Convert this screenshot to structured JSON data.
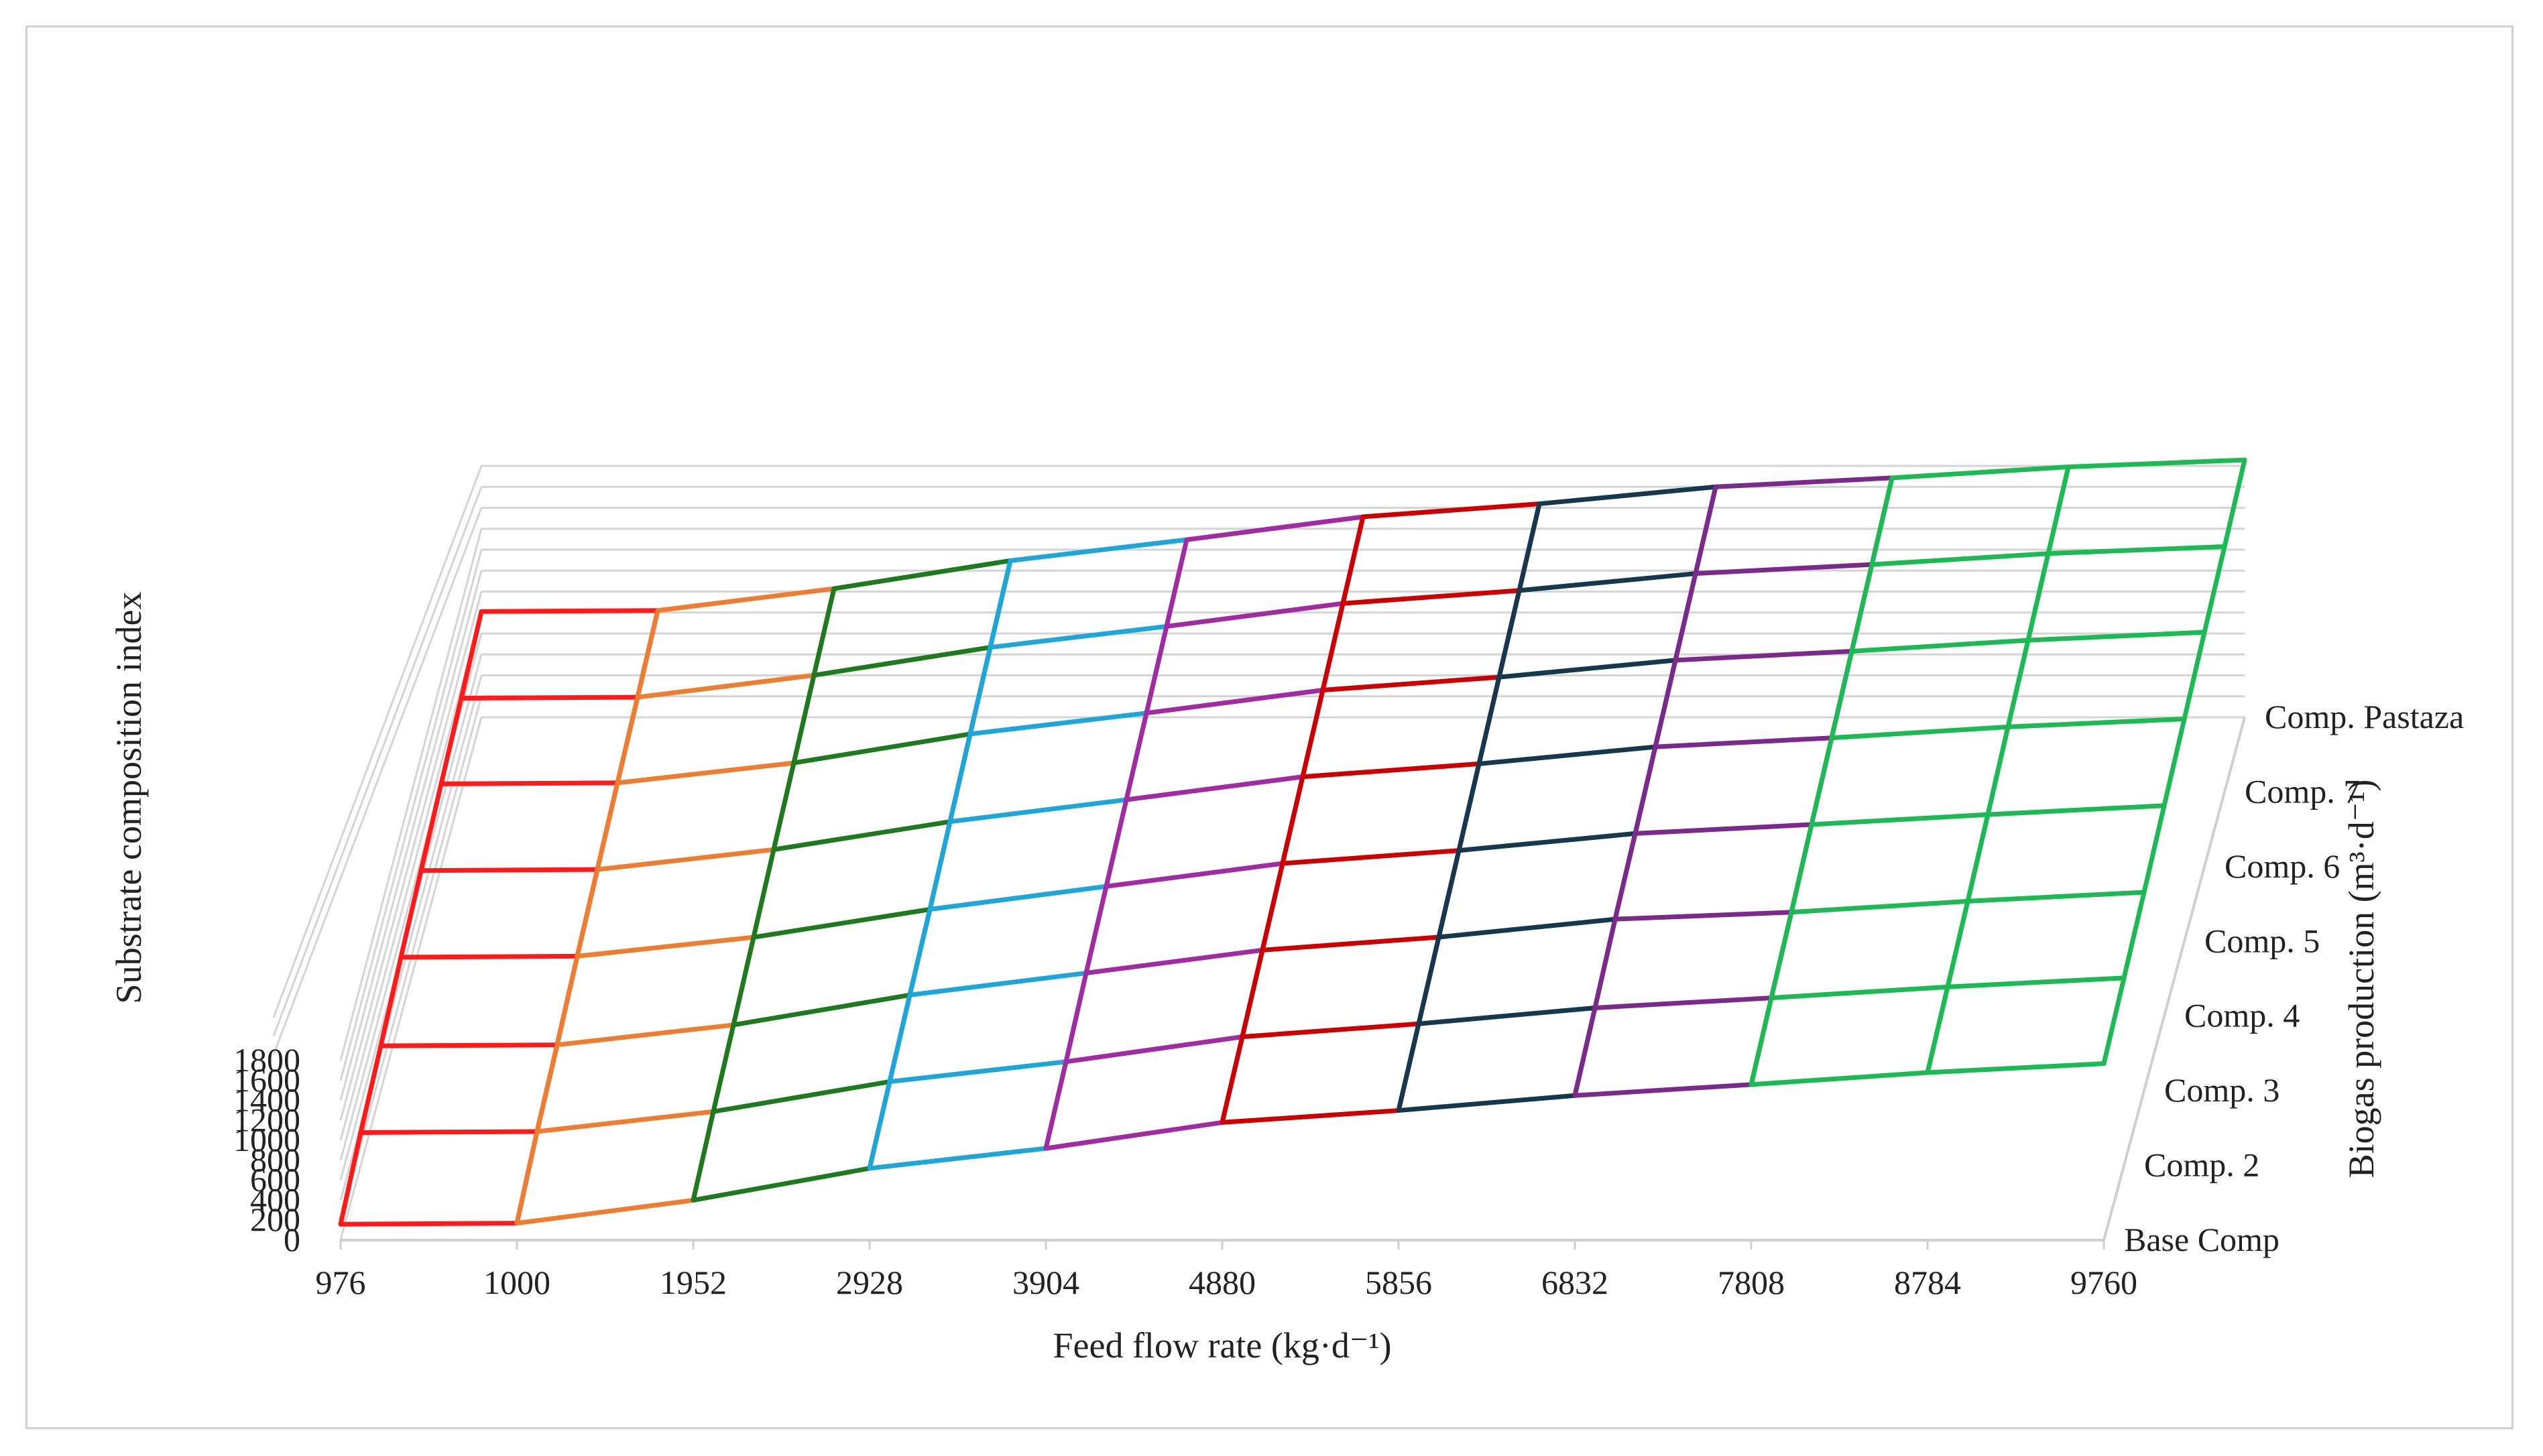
{
  "chart_data": {
    "type": "3d-surface",
    "x_label": "Feed flow rate (kg·d⁻¹)",
    "y_label": "Substrate composition index",
    "z_label": "Biogas production (m³·d⁻¹)",
    "x_ticks": [
      "976",
      "1000",
      "1952",
      "2928",
      "3904",
      "4880",
      "5856",
      "6832",
      "7808",
      "8784",
      "9760"
    ],
    "y_ticks": [
      "0",
      "200",
      "400",
      "600",
      "800",
      "1000",
      "1200",
      "1400",
      "1600",
      "1800"
    ],
    "series_ticks": [
      "Base Comp",
      "Comp. 2",
      "Comp. 3",
      "Comp. 4",
      "Comp. 5",
      "Comp. 6",
      "Comp. 7",
      "Comp. Pastaza"
    ],
    "ylim": [
      0,
      1800
    ],
    "gridlines": true,
    "band_colors": [
      "#ff1a1a",
      "#ed7d31",
      "#1e7a1e",
      "#1fa6d9",
      "#a12ca1",
      "#cc0000",
      "#15384e",
      "#7b2a8c",
      "#1db954"
    ],
    "z_values": [
      [
        160,
        170,
        400,
        720,
        920,
        1180,
        1300,
        1450,
        1560,
        1680,
        1770
      ],
      [
        330,
        340,
        540,
        840,
        1040,
        1290,
        1420,
        1580,
        1680,
        1790,
        1880
      ],
      [
        450,
        460,
        660,
        960,
        1180,
        1410,
        1540,
        1720,
        1790,
        1900,
        1990
      ],
      [
        590,
        600,
        790,
        1070,
        1300,
        1530,
        1660,
        1830,
        1920,
        2020,
        2110
      ],
      [
        710,
        720,
        920,
        1200,
        1420,
        1650,
        1780,
        1950,
        2040,
        2150,
        2230
      ],
      [
        830,
        840,
        1040,
        1330,
        1540,
        1770,
        1900,
        2070,
        2160,
        2270,
        2350
      ],
      [
        940,
        950,
        1170,
        1450,
        1660,
        1890,
        2020,
        2190,
        2280,
        2390,
        2460
      ],
      [
        1060,
        1070,
        1290,
        1570,
        1780,
        2010,
        2140,
        2310,
        2400,
        2510,
        2580
      ]
    ]
  }
}
